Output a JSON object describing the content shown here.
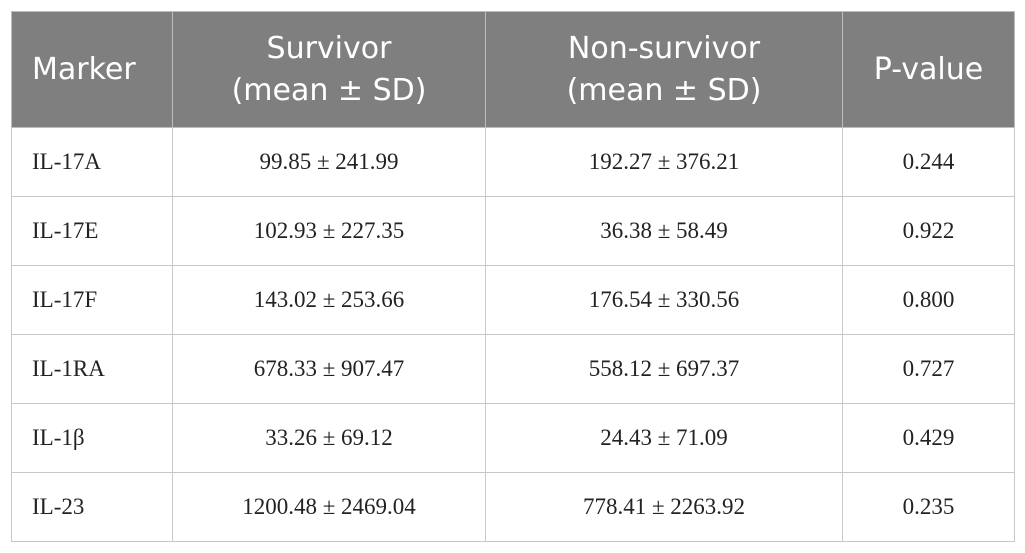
{
  "table": {
    "header": [
      [
        "Marker"
      ],
      [
        "Survivor",
        "(mean ± SD)"
      ],
      [
        "Non-survivor",
        "(mean ± SD)"
      ],
      [
        "P-value"
      ]
    ],
    "rows": [
      [
        "IL-17A",
        "99.85 ± 241.99",
        "192.27 ± 376.21",
        "0.244"
      ],
      [
        "IL-17E",
        "102.93 ± 227.35",
        "36.38 ± 58.49",
        "0.922"
      ],
      [
        "IL-17F",
        "143.02 ± 253.66",
        "176.54 ± 330.56",
        "0.800"
      ],
      [
        "IL-1RA",
        "678.33 ± 907.47",
        "558.12 ± 697.37",
        "0.727"
      ],
      [
        "IL-1β",
        "33.26 ± 69.12",
        "24.43 ± 71.09",
        "0.429"
      ],
      [
        "IL-23",
        "1200.48 ± 2469.04",
        "778.41 ± 2263.92",
        "0.235"
      ]
    ]
  }
}
